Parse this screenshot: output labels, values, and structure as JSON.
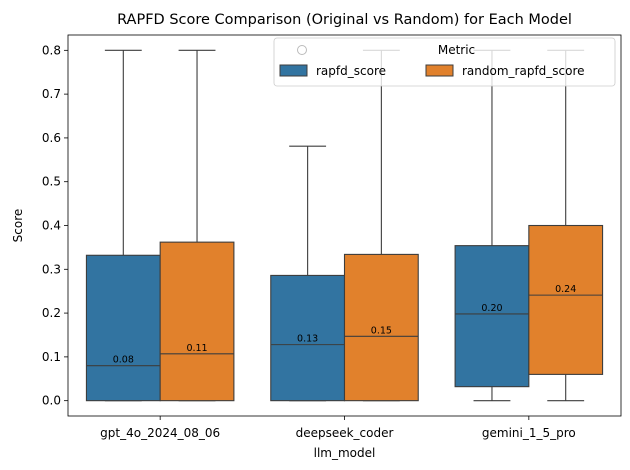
{
  "chart_data": {
    "type": "box",
    "title": "RAPFD Score Comparison (Original vs Random) for Each Model",
    "xlabel": "llm_model",
    "ylabel": "Score",
    "ylim": [
      -0.035,
      0.835
    ],
    "yticks": [
      0.0,
      0.1,
      0.2,
      0.3,
      0.4,
      0.5,
      0.6,
      0.7,
      0.8
    ],
    "ytick_labels": [
      "0.0",
      "0.1",
      "0.2",
      "0.3",
      "0.4",
      "0.5",
      "0.6",
      "0.7",
      "0.8"
    ],
    "categories": [
      "gpt_4o_2024_08_06",
      "deepseek_coder",
      "gemini_1_5_pro"
    ],
    "legend": {
      "title": "Metric",
      "placement": "top-right",
      "entries": [
        "rapfd_score",
        "random_rapfd_score"
      ]
    },
    "series": [
      {
        "name": "rapfd_score",
        "color": "#3274a1",
        "boxes": [
          {
            "whisker_low": 0.0,
            "q1": 0.0,
            "median": 0.08,
            "q3": 0.332,
            "whisker_high": 0.8,
            "median_label": "0.08"
          },
          {
            "whisker_low": 0.0,
            "q1": 0.0,
            "median": 0.128,
            "q3": 0.286,
            "whisker_high": 0.581,
            "median_label": "0.13"
          },
          {
            "whisker_low": 0.0,
            "q1": 0.032,
            "median": 0.198,
            "q3": 0.354,
            "whisker_high": 0.8,
            "median_label": "0.20"
          }
        ]
      },
      {
        "name": "random_rapfd_score",
        "color": "#e1812c",
        "boxes": [
          {
            "whisker_low": 0.0,
            "q1": 0.0,
            "median": 0.107,
            "q3": 0.362,
            "whisker_high": 0.8,
            "median_label": "0.11"
          },
          {
            "whisker_low": 0.0,
            "q1": 0.0,
            "median": 0.147,
            "q3": 0.334,
            "whisker_high": 0.8,
            "median_label": "0.15"
          },
          {
            "whisker_low": 0.0,
            "q1": 0.06,
            "median": 0.241,
            "q3": 0.4,
            "whisker_high": 0.8,
            "median_label": "0.24"
          }
        ]
      }
    ]
  }
}
